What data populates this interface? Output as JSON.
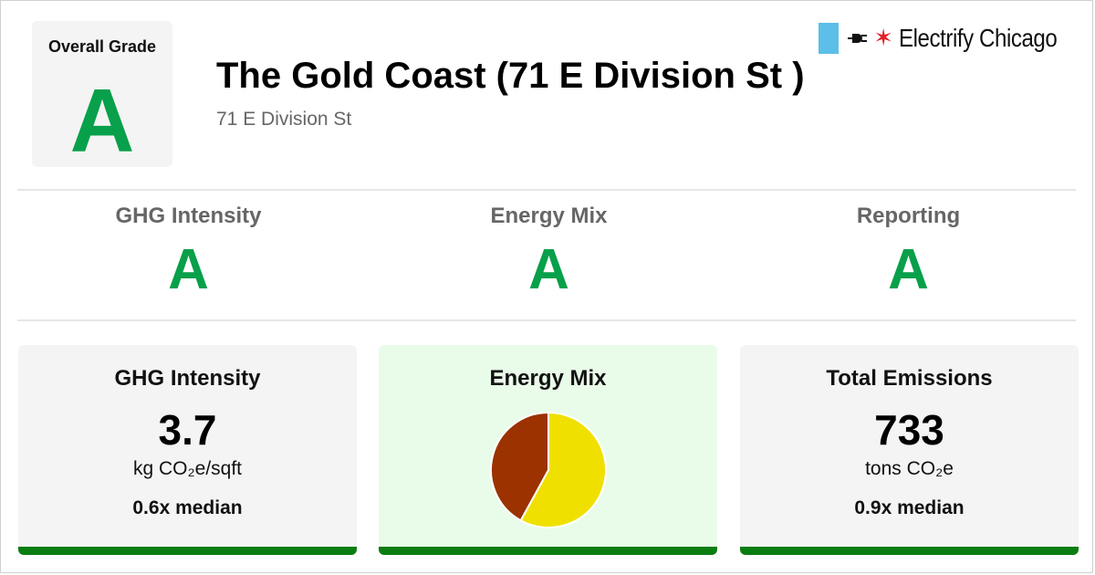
{
  "overall": {
    "label": "Overall Grade",
    "grade": "A"
  },
  "building": {
    "name": "The Gold Coast (71 E Division St )",
    "address": "71 E Division St"
  },
  "brand": {
    "name": "Electrify Chicago",
    "flag_color": "#5bbfe9",
    "star_color": "#e4202b",
    "icons": [
      "plug-icon",
      "star-icon"
    ]
  },
  "grades": [
    {
      "label": "GHG Intensity",
      "grade": "A"
    },
    {
      "label": "Energy Mix",
      "grade": "A"
    },
    {
      "label": "Reporting",
      "grade": "A"
    }
  ],
  "cards": {
    "ghg": {
      "title": "GHG Intensity",
      "value": "3.7",
      "unit": "kg CO₂e/sqft",
      "note": "0.6x median"
    },
    "energy_mix": {
      "title": "Energy Mix"
    },
    "emissions": {
      "title": "Total Emissions",
      "value": "733",
      "unit": "tons CO₂e",
      "note": "0.9x median"
    }
  },
  "chart_data": {
    "type": "pie",
    "slices": [
      {
        "share": 0.58,
        "color": "#f0e000"
      },
      {
        "share": 0.42,
        "color": "#9b3200"
      }
    ]
  },
  "colors": {
    "grade_green": "#08a04a",
    "card_bar": "#0a7d12",
    "energy_card_bg": "#e9fce9"
  }
}
